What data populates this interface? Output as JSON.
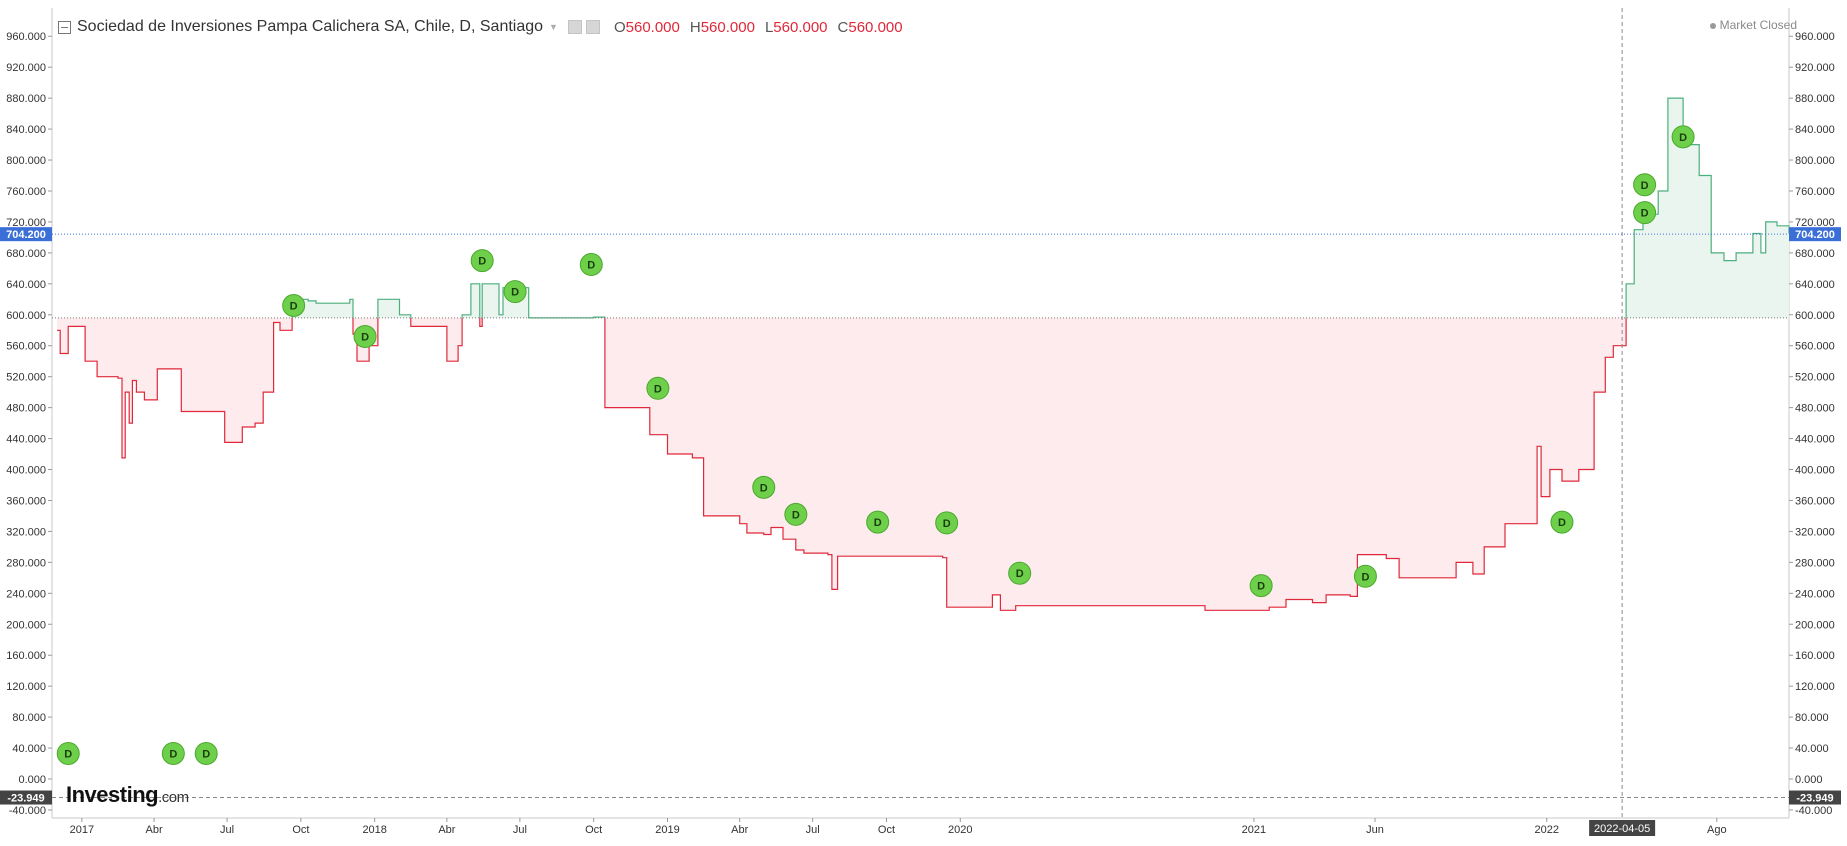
{
  "header": {
    "title": "Sociedad de Inversiones Pampa Calichera SA, Chile, D, Santiago",
    "open_label": "O",
    "open_value": "560.000",
    "high_label": "H",
    "high_value": "560.000",
    "low_label": "L",
    "low_value": "560.000",
    "close_label": "C",
    "close_value": "560.000",
    "market_status": "Market Closed"
  },
  "brand": {
    "name": "Investing",
    "suffix": ".com"
  },
  "colors": {
    "up_line": "#4caf7d",
    "up_fill": "#e9f5ee",
    "down_line": "#e0283a",
    "down_fill": "#fdebed",
    "dividend": "#6ed04a",
    "current_price": "#3a6fd8",
    "neg_label": "#444444"
  },
  "chart_data": {
    "type": "area",
    "title": "Sociedad de Inversiones Pampa Calichera SA, Chile, D, Santiago",
    "baseline": 596,
    "ylim": [
      -23.949,
      960
    ],
    "y_ticks": [
      960,
      920,
      880,
      840,
      800,
      760,
      720,
      680,
      640,
      600,
      560,
      520,
      480,
      440,
      400,
      360,
      320,
      280,
      240,
      200,
      160,
      120,
      80,
      40,
      0,
      -40
    ],
    "y_tick_labels": [
      "960.000",
      "920.000",
      "880.000",
      "840.000",
      "800.000",
      "760.000",
      "720.000",
      "680.000",
      "640.000",
      "600.000",
      "560.000",
      "520.000",
      "480.000",
      "440.000",
      "400.000",
      "360.000",
      "320.000",
      "280.000",
      "240.000",
      "200.000",
      "160.000",
      "120.000",
      "80.000",
      "40.000",
      "0.000",
      "-40.000"
    ],
    "current_price": 704.2,
    "current_price_label": "704.200",
    "crosshair": {
      "x": "2022-04-05",
      "x_label": "2022-04-05",
      "y_label": "-23.949"
    },
    "x_ticks": [
      {
        "date": "2017-01-01",
        "label": "2017"
      },
      {
        "date": "2017-04-01",
        "label": "Abr"
      },
      {
        "date": "2017-07-01",
        "label": "Jul"
      },
      {
        "date": "2017-10-01",
        "label": "Oct"
      },
      {
        "date": "2018-01-01",
        "label": "2018"
      },
      {
        "date": "2018-04-01",
        "label": "Abr"
      },
      {
        "date": "2018-07-01",
        "label": "Jul"
      },
      {
        "date": "2018-10-01",
        "label": "Oct"
      },
      {
        "date": "2019-01-01",
        "label": "2019"
      },
      {
        "date": "2019-04-01",
        "label": "Abr"
      },
      {
        "date": "2019-07-01",
        "label": "Jul"
      },
      {
        "date": "2019-10-01",
        "label": "Oct"
      },
      {
        "date": "2020-01-01",
        "label": "2020"
      },
      {
        "date": "2021-01-01",
        "label": "2021"
      },
      {
        "date": "2021-06-01",
        "label": "Jun"
      },
      {
        "date": "2022-01-01",
        "label": "2022"
      },
      {
        "date": "2022-08-01",
        "label": "Ago"
      }
    ],
    "series": [
      {
        "values": [
          [
            "2016-12-01",
            580
          ],
          [
            "2016-12-05",
            550
          ],
          [
            "2016-12-15",
            585
          ],
          [
            "2016-12-28",
            585
          ],
          [
            "2017-01-05",
            540
          ],
          [
            "2017-01-20",
            520
          ],
          [
            "2017-02-15",
            518
          ],
          [
            "2017-02-20",
            415
          ],
          [
            "2017-02-24",
            500
          ],
          [
            "2017-03-01",
            460
          ],
          [
            "2017-03-05",
            515
          ],
          [
            "2017-03-10",
            500
          ],
          [
            "2017-03-20",
            490
          ],
          [
            "2017-04-05",
            530
          ],
          [
            "2017-04-25",
            530
          ],
          [
            "2017-05-05",
            475
          ],
          [
            "2017-06-20",
            475
          ],
          [
            "2017-06-28",
            435
          ],
          [
            "2017-07-10",
            435
          ],
          [
            "2017-07-20",
            455
          ],
          [
            "2017-08-05",
            460
          ],
          [
            "2017-08-15",
            500
          ],
          [
            "2017-08-28",
            590
          ],
          [
            "2017-09-05",
            580
          ],
          [
            "2017-09-20",
            600
          ],
          [
            "2017-09-25",
            620
          ],
          [
            "2017-10-10",
            618
          ],
          [
            "2017-10-20",
            615
          ],
          [
            "2017-12-01",
            620
          ],
          [
            "2017-12-05",
            575
          ],
          [
            "2017-12-10",
            540
          ],
          [
            "2017-12-25",
            560
          ],
          [
            "2018-01-05",
            620
          ],
          [
            "2018-02-01",
            600
          ],
          [
            "2018-02-15",
            585
          ],
          [
            "2018-03-25",
            585
          ],
          [
            "2018-04-01",
            540
          ],
          [
            "2018-04-15",
            560
          ],
          [
            "2018-04-20",
            600
          ],
          [
            "2018-05-01",
            640
          ],
          [
            "2018-05-10",
            640
          ],
          [
            "2018-05-12",
            585
          ],
          [
            "2018-05-15",
            640
          ],
          [
            "2018-06-05",
            600
          ],
          [
            "2018-06-10",
            635
          ],
          [
            "2018-07-10",
            635
          ],
          [
            "2018-07-12",
            596
          ],
          [
            "2018-09-20",
            596
          ],
          [
            "2018-10-01",
            597
          ],
          [
            "2018-10-10",
            597
          ],
          [
            "2018-10-15",
            480
          ],
          [
            "2018-12-01",
            480
          ],
          [
            "2018-12-10",
            445
          ],
          [
            "2019-01-01",
            420
          ],
          [
            "2019-02-01",
            415
          ],
          [
            "2019-02-15",
            340
          ],
          [
            "2019-03-10",
            340
          ],
          [
            "2019-04-01",
            330
          ],
          [
            "2019-04-10",
            318
          ],
          [
            "2019-05-01",
            316
          ],
          [
            "2019-05-10",
            325
          ],
          [
            "2019-05-25",
            310
          ],
          [
            "2019-06-10",
            296
          ],
          [
            "2019-06-20",
            292
          ],
          [
            "2019-07-20",
            290
          ],
          [
            "2019-07-25",
            245
          ],
          [
            "2019-08-01",
            288
          ],
          [
            "2019-12-10",
            286
          ],
          [
            "2019-12-15",
            222
          ],
          [
            "2020-01-25",
            222
          ],
          [
            "2020-02-10",
            238
          ],
          [
            "2020-02-20",
            218
          ],
          [
            "2020-03-10",
            224
          ],
          [
            "2020-11-01",
            218
          ],
          [
            "2021-01-01",
            218
          ],
          [
            "2021-01-20",
            222
          ],
          [
            "2021-02-10",
            232
          ],
          [
            "2021-03-15",
            228
          ],
          [
            "2021-04-01",
            238
          ],
          [
            "2021-05-01",
            236
          ],
          [
            "2021-05-10",
            290
          ],
          [
            "2021-06-15",
            285
          ],
          [
            "2021-07-01",
            260
          ],
          [
            "2021-08-20",
            260
          ],
          [
            "2021-09-10",
            280
          ],
          [
            "2021-10-01",
            265
          ],
          [
            "2021-10-15",
            300
          ],
          [
            "2021-11-10",
            330
          ],
          [
            "2021-12-10",
            330
          ],
          [
            "2021-12-20",
            430
          ],
          [
            "2021-12-25",
            365
          ],
          [
            "2022-01-05",
            400
          ],
          [
            "2022-01-20",
            385
          ],
          [
            "2022-02-10",
            400
          ],
          [
            "2022-03-01",
            500
          ],
          [
            "2022-03-15",
            545
          ],
          [
            "2022-03-25",
            560
          ],
          [
            "2022-04-05",
            560
          ],
          [
            "2022-04-10",
            640
          ],
          [
            "2022-04-20",
            710
          ],
          [
            "2022-05-01",
            730
          ],
          [
            "2022-05-20",
            760
          ],
          [
            "2022-06-01",
            880
          ],
          [
            "2022-06-20",
            820
          ],
          [
            "2022-07-10",
            780
          ],
          [
            "2022-07-25",
            680
          ],
          [
            "2022-08-10",
            670
          ],
          [
            "2022-08-25",
            680
          ],
          [
            "2022-09-15",
            705
          ],
          [
            "2022-09-25",
            680
          ],
          [
            "2022-10-01",
            720
          ],
          [
            "2022-10-15",
            715
          ],
          [
            "2022-10-30",
            705
          ]
        ]
      }
    ],
    "dividend_markers": [
      {
        "date": "2016-12-15",
        "price": 33,
        "label": "D"
      },
      {
        "date": "2017-04-25",
        "price": 33,
        "label": "D"
      },
      {
        "date": "2017-06-05",
        "price": 33,
        "label": "D"
      },
      {
        "date": "2017-09-22",
        "price": 612,
        "label": "D"
      },
      {
        "date": "2017-12-20",
        "price": 572,
        "label": "D"
      },
      {
        "date": "2018-05-15",
        "price": 670,
        "label": "D"
      },
      {
        "date": "2018-06-25",
        "price": 630,
        "label": "D"
      },
      {
        "date": "2018-09-28",
        "price": 665,
        "label": "D"
      },
      {
        "date": "2018-12-20",
        "price": 505,
        "label": "D"
      },
      {
        "date": "2019-05-01",
        "price": 377,
        "label": "D"
      },
      {
        "date": "2019-06-10",
        "price": 342,
        "label": "D"
      },
      {
        "date": "2019-09-20",
        "price": 332,
        "label": "D"
      },
      {
        "date": "2019-12-15",
        "price": 331,
        "label": "D"
      },
      {
        "date": "2020-03-15",
        "price": 266,
        "label": "D"
      },
      {
        "date": "2021-01-10",
        "price": 250,
        "label": "D"
      },
      {
        "date": "2021-05-20",
        "price": 262,
        "label": "D"
      },
      {
        "date": "2022-01-20",
        "price": 332,
        "label": "D"
      },
      {
        "date": "2022-05-03",
        "price": 768,
        "label": "D"
      },
      {
        "date": "2022-05-03",
        "price": 732,
        "label": "D"
      },
      {
        "date": "2022-06-20",
        "price": 830,
        "label": "D"
      }
    ]
  }
}
